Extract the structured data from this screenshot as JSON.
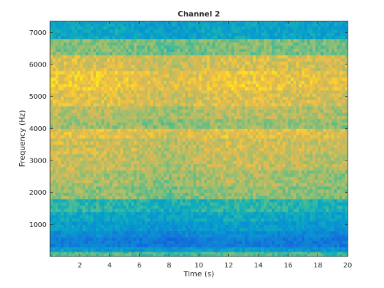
{
  "chart_data": {
    "type": "heatmap",
    "title": "Channel 2",
    "xlabel": "Time (s)",
    "ylabel": "Frequency (Hz)",
    "xlim": [
      0,
      20
    ],
    "ylim": [
      0,
      7350
    ],
    "xticks": [
      2,
      4,
      6,
      8,
      10,
      12,
      14,
      16,
      18,
      20
    ],
    "xtick_labels": [
      "2",
      "4",
      "6",
      "8",
      "10",
      "12",
      "14",
      "16",
      "18",
      "20"
    ],
    "yticks": [
      1000,
      2000,
      3000,
      4000,
      5000,
      6000,
      7000
    ],
    "ytick_labels": [
      "1000",
      "2000",
      "3000",
      "4000",
      "5000",
      "6000",
      "7000"
    ],
    "colormap": "parula",
    "grid": false,
    "value_scale": "relative level, 0 = low (blue) to 1 = high (yellow)",
    "frequency_bands": [
      {
        "from": 0,
        "to": 150,
        "level": 0.62
      },
      {
        "from": 150,
        "to": 300,
        "level": 0.42
      },
      {
        "from": 300,
        "to": 600,
        "level": 0.28
      },
      {
        "from": 600,
        "to": 800,
        "level": 0.35
      },
      {
        "from": 800,
        "to": 1100,
        "level": 0.42
      },
      {
        "from": 1100,
        "to": 1400,
        "level": 0.48
      },
      {
        "from": 1400,
        "to": 1800,
        "level": 0.55
      },
      {
        "from": 1800,
        "to": 2200,
        "level": 0.7
      },
      {
        "from": 2200,
        "to": 2700,
        "level": 0.74
      },
      {
        "from": 2700,
        "to": 3200,
        "level": 0.78
      },
      {
        "from": 3200,
        "to": 3700,
        "level": 0.8
      },
      {
        "from": 3700,
        "to": 4000,
        "level": 0.84
      },
      {
        "from": 4000,
        "to": 4300,
        "level": 0.72
      },
      {
        "from": 4300,
        "to": 4700,
        "level": 0.76
      },
      {
        "from": 4700,
        "to": 5200,
        "level": 0.83
      },
      {
        "from": 5200,
        "to": 5800,
        "level": 0.87
      },
      {
        "from": 5800,
        "to": 6300,
        "level": 0.82
      },
      {
        "from": 6300,
        "to": 6800,
        "level": 0.68
      },
      {
        "from": 6800,
        "to": 7350,
        "level": 0.47
      }
    ],
    "time_trend": [
      {
        "time": 0,
        "offset": 0.03
      },
      {
        "time": 5,
        "offset": 0.02
      },
      {
        "time": 8,
        "offset": -0.02
      },
      {
        "time": 12,
        "offset": 0.03
      },
      {
        "time": 15,
        "offset": 0.02
      },
      {
        "time": 20,
        "offset": -0.01
      }
    ]
  }
}
